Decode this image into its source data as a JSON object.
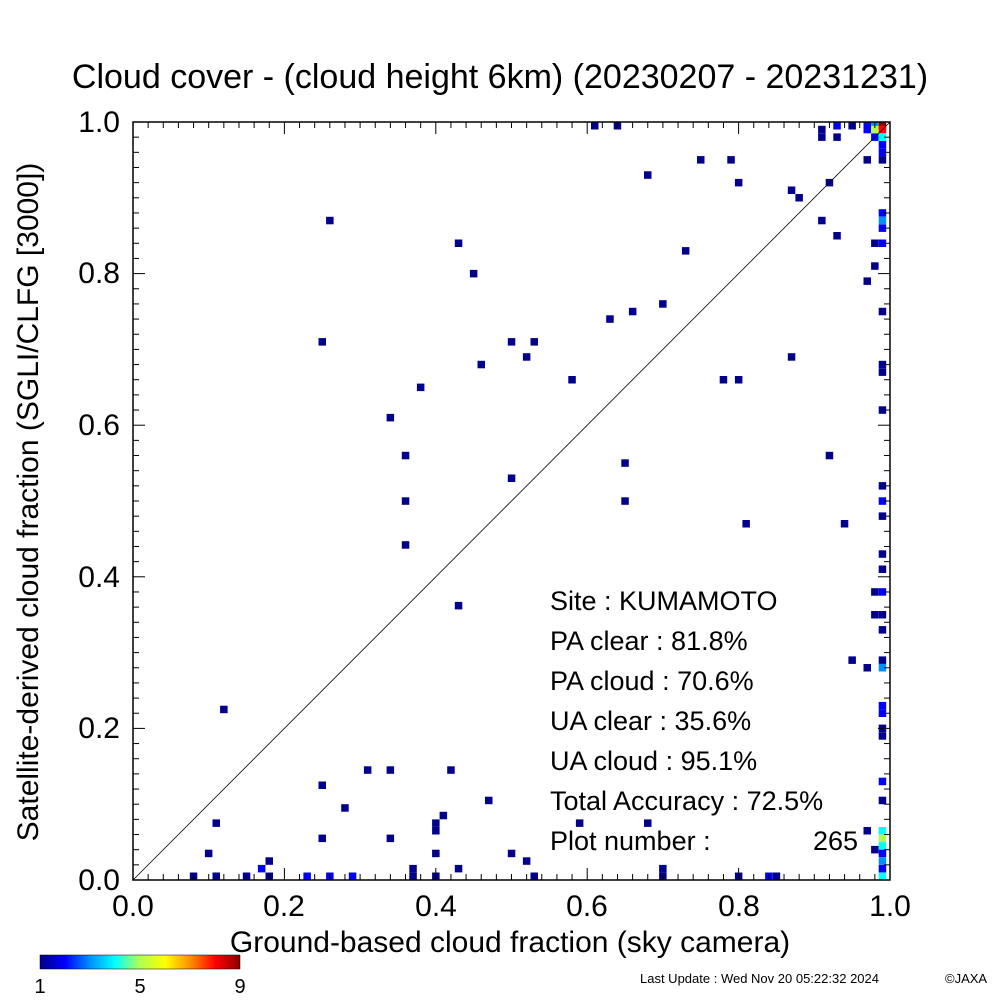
{
  "chart_data": {
    "type": "heatmap",
    "title": "Cloud cover - (cloud height 6km)  (20230207 - 20231231)",
    "xlabel": "Ground-based cloud fraction (sky camera)",
    "ylabel": "Satellite-derived cloud fraction (SGLI/CLFG [3000])",
    "xlim": [
      0.0,
      1.0
    ],
    "ylim": [
      0.0,
      1.0
    ],
    "x_ticks": [
      "0.0",
      "0.2",
      "0.4",
      "0.6",
      "0.8",
      "1.0"
    ],
    "y_ticks": [
      "0.0",
      "0.2",
      "0.4",
      "0.6",
      "0.8",
      "1.0"
    ],
    "grid": false,
    "reference_line": "1:1 diagonal",
    "colorbar": {
      "min": 1,
      "max": 9,
      "tick_labels": [
        "1",
        "5",
        "9"
      ],
      "colors": [
        "#00008c",
        "#0000ff",
        "#0090ff",
        "#00ffff",
        "#b0ff50",
        "#ffff00",
        "#ff9000",
        "#ff0000",
        "#8c0000"
      ]
    },
    "points": [
      [
        0.08,
        0.0,
        1
      ],
      [
        0.11,
        0.0,
        1
      ],
      [
        0.15,
        0.0,
        1
      ],
      [
        0.18,
        0.0,
        1
      ],
      [
        0.23,
        0.0,
        2
      ],
      [
        0.26,
        0.0,
        2
      ],
      [
        0.29,
        0.0,
        2
      ],
      [
        0.37,
        0.0,
        1
      ],
      [
        0.4,
        0.0,
        1
      ],
      [
        0.53,
        0.0,
        1
      ],
      [
        0.7,
        0.0,
        1
      ],
      [
        0.8,
        0.0,
        1
      ],
      [
        0.84,
        0.0,
        2
      ],
      [
        0.85,
        0.0,
        1
      ],
      [
        0.17,
        0.015,
        2
      ],
      [
        0.37,
        0.015,
        1
      ],
      [
        0.43,
        0.015,
        1
      ],
      [
        0.7,
        0.015,
        1
      ],
      [
        0.18,
        0.025,
        1
      ],
      [
        0.52,
        0.025,
        1
      ],
      [
        0.1,
        0.035,
        1
      ],
      [
        0.4,
        0.035,
        1
      ],
      [
        0.5,
        0.035,
        1
      ],
      [
        0.25,
        0.055,
        1
      ],
      [
        0.34,
        0.055,
        1
      ],
      [
        0.4,
        0.065,
        1
      ],
      [
        0.4,
        0.075,
        1
      ],
      [
        0.11,
        0.075,
        1
      ],
      [
        0.59,
        0.075,
        1
      ],
      [
        0.68,
        0.075,
        1
      ],
      [
        0.41,
        0.085,
        1
      ],
      [
        0.28,
        0.095,
        1
      ],
      [
        0.47,
        0.105,
        1
      ],
      [
        0.25,
        0.125,
        1
      ],
      [
        0.31,
        0.145,
        1
      ],
      [
        0.34,
        0.145,
        1
      ],
      [
        0.42,
        0.145,
        1
      ],
      [
        0.12,
        0.225,
        1
      ],
      [
        0.43,
        0.362,
        1
      ],
      [
        0.36,
        0.442,
        1
      ],
      [
        0.36,
        0.5,
        1
      ],
      [
        0.65,
        0.5,
        1
      ],
      [
        0.5,
        0.53,
        1
      ],
      [
        0.65,
        0.55,
        1
      ],
      [
        0.36,
        0.56,
        1
      ],
      [
        0.92,
        0.56,
        1
      ],
      [
        0.81,
        0.47,
        1
      ],
      [
        0.94,
        0.47,
        1
      ],
      [
        0.34,
        0.61,
        1
      ],
      [
        0.38,
        0.65,
        1
      ],
      [
        0.58,
        0.66,
        1
      ],
      [
        0.78,
        0.66,
        1
      ],
      [
        0.8,
        0.66,
        1
      ],
      [
        0.46,
        0.68,
        1
      ],
      [
        0.52,
        0.69,
        1
      ],
      [
        0.87,
        0.69,
        1
      ],
      [
        0.25,
        0.71,
        1
      ],
      [
        0.5,
        0.71,
        1
      ],
      [
        0.53,
        0.71,
        1
      ],
      [
        0.63,
        0.74,
        1
      ],
      [
        0.66,
        0.75,
        1
      ],
      [
        0.7,
        0.76,
        1
      ],
      [
        0.45,
        0.8,
        1
      ],
      [
        0.43,
        0.84,
        1
      ],
      [
        0.73,
        0.83,
        1
      ],
      [
        0.26,
        0.87,
        1
      ],
      [
        0.91,
        0.87,
        1
      ],
      [
        0.93,
        0.85,
        1
      ],
      [
        0.95,
        0.29,
        1
      ],
      [
        0.97,
        0.79,
        1
      ],
      [
        0.98,
        0.81,
        1
      ],
      [
        0.87,
        0.91,
        1
      ],
      [
        0.88,
        0.9,
        1
      ],
      [
        0.68,
        0.93,
        1
      ],
      [
        0.8,
        0.92,
        1
      ],
      [
        0.92,
        0.92,
        1
      ],
      [
        0.75,
        0.95,
        1
      ],
      [
        0.79,
        0.95,
        1
      ],
      [
        0.97,
        0.95,
        1
      ],
      [
        0.61,
        1.0,
        1
      ],
      [
        0.64,
        1.0,
        1
      ],
      [
        0.91,
        0.98,
        1
      ],
      [
        0.91,
        0.99,
        1
      ],
      [
        0.93,
        0.98,
        1
      ],
      [
        0.95,
        1.0,
        1
      ],
      [
        0.93,
        1.0,
        2
      ],
      [
        0.97,
        1.0,
        2
      ],
      [
        0.98,
        1.0,
        3
      ],
      [
        0.98,
        0.99,
        5
      ],
      [
        0.99,
        1.0,
        9
      ],
      [
        0.99,
        0.99,
        8
      ],
      [
        0.98,
        0.98,
        2
      ],
      [
        0.97,
        0.99,
        2
      ],
      [
        0.99,
        0.98,
        4
      ],
      [
        0.99,
        0.97,
        2
      ],
      [
        0.99,
        0.96,
        2
      ],
      [
        0.99,
        0.95,
        1
      ],
      [
        0.99,
        0.88,
        2
      ],
      [
        0.99,
        0.87,
        3
      ],
      [
        0.99,
        0.86,
        2
      ],
      [
        0.99,
        0.84,
        2
      ],
      [
        0.98,
        0.84,
        1
      ],
      [
        0.99,
        0.75,
        1
      ],
      [
        0.99,
        0.68,
        1
      ],
      [
        0.99,
        0.67,
        1
      ],
      [
        0.99,
        0.62,
        1
      ],
      [
        0.99,
        0.52,
        1
      ],
      [
        0.99,
        0.5,
        2
      ],
      [
        0.99,
        0.48,
        1
      ],
      [
        0.99,
        0.43,
        1
      ],
      [
        0.99,
        0.41,
        1
      ],
      [
        0.99,
        0.38,
        2
      ],
      [
        0.98,
        0.38,
        1
      ],
      [
        0.99,
        0.35,
        1
      ],
      [
        0.98,
        0.35,
        1
      ],
      [
        0.99,
        0.33,
        1
      ],
      [
        0.99,
        0.29,
        1
      ],
      [
        0.99,
        0.28,
        3
      ],
      [
        0.97,
        0.28,
        1
      ],
      [
        0.99,
        0.23,
        2
      ],
      [
        0.99,
        0.22,
        2
      ],
      [
        0.99,
        0.2,
        1
      ],
      [
        0.99,
        0.19,
        1
      ],
      [
        0.99,
        0.13,
        2
      ],
      [
        0.99,
        0.105,
        1
      ],
      [
        0.99,
        0.065,
        4
      ],
      [
        0.99,
        0.055,
        5
      ],
      [
        0.99,
        0.045,
        4
      ],
      [
        0.98,
        0.04,
        1
      ],
      [
        0.99,
        0.035,
        2
      ],
      [
        0.99,
        0.025,
        3
      ],
      [
        0.99,
        0.015,
        2
      ],
      [
        0.99,
        0.0,
        4
      ],
      [
        0.97,
        0.065,
        1
      ]
    ]
  },
  "stats": {
    "site": "Site : KUMAMOTO",
    "pa_clear": "PA clear :  81.8%",
    "pa_cloud": "PA cloud :  70.6%",
    "ua_clear": "UA clear :  35.6%",
    "ua_cloud": "UA cloud :  95.1%",
    "total_accuracy": "Total Accuracy :  72.5%",
    "plot_number_label": "Plot number :",
    "plot_number_value": "265"
  },
  "footer": {
    "last_update": "Last Update : Wed Nov 20 05:22:32 2024",
    "copyright": "©JAXA"
  }
}
